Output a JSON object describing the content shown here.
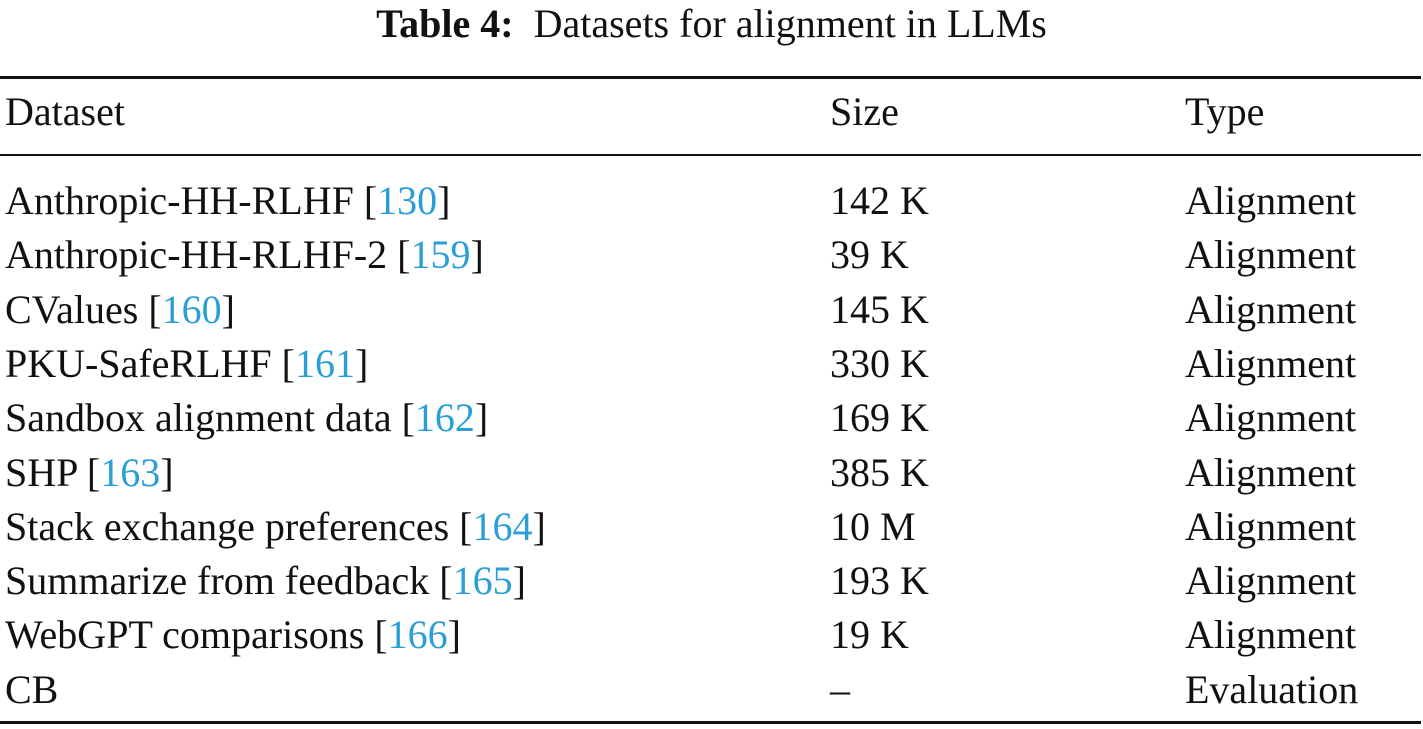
{
  "caption": {
    "label": "Table 4:",
    "text": "Datasets for alignment in LLMs"
  },
  "table": {
    "header": [
      "Dataset",
      "Size",
      "Type"
    ],
    "rows": [
      [
        [
          "Anthropic-HH-RLHF [",
          "130",
          "]"
        ],
        "142 K",
        "Alignment"
      ],
      [
        [
          "Anthropic-HH-RLHF-2 [",
          "159",
          "]"
        ],
        "39 K",
        "Alignment"
      ],
      [
        [
          "CValues [",
          "160",
          "]"
        ],
        "145 K",
        "Alignment"
      ],
      [
        [
          "PKU-SafeRLHF [",
          "161",
          "]"
        ],
        "330 K",
        "Alignment"
      ],
      [
        [
          "Sandbox alignment data [",
          "162",
          "]"
        ],
        "169 K",
        "Alignment"
      ],
      [
        [
          "SHP [",
          "163",
          "]"
        ],
        "385 K",
        "Alignment"
      ],
      [
        [
          "Stack exchange preferences [",
          "164",
          "]"
        ],
        "10 M",
        "Alignment"
      ],
      [
        [
          "Summarize from feedback [",
          "165",
          "]"
        ],
        "193 K",
        "Alignment"
      ],
      [
        [
          "WebGPT comparisons [",
          "166",
          "]"
        ],
        "19 K",
        "Alignment"
      ],
      [
        [
          "CB"
        ],
        "–",
        "Evaluation"
      ]
    ]
  }
}
